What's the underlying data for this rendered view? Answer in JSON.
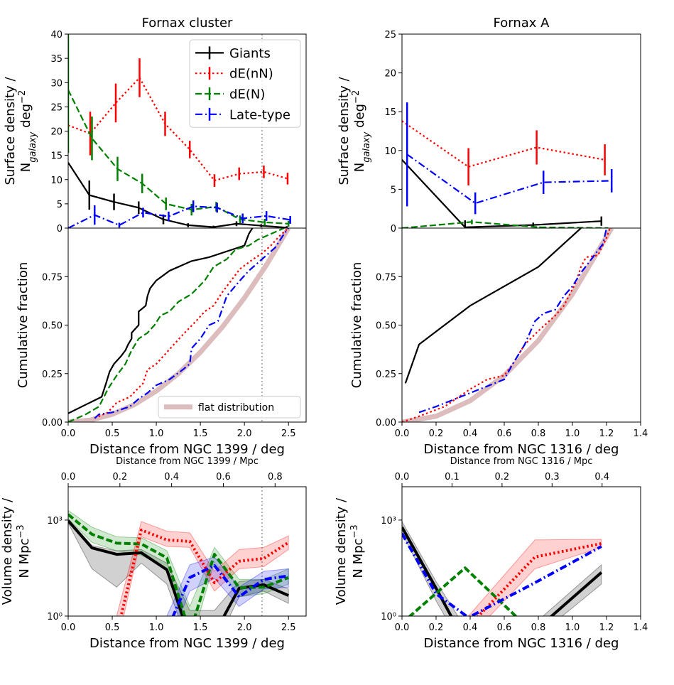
{
  "chart_data": [
    {
      "type": "line",
      "title": "Fornax cluster",
      "ylabel": [
        "Surface density /",
        [
          "N",
          "galaxy",
          " deg",
          "−2"
        ]
      ],
      "xlim": [
        0,
        2.7
      ],
      "ylim": [
        0,
        40
      ],
      "yticks": [
        0,
        5,
        10,
        15,
        20,
        25,
        30,
        35,
        40
      ],
      "vline": 2.2,
      "legend": "upper right",
      "series": [
        {
          "name": "Giants",
          "color": "#000000",
          "style": "solid",
          "x": [
            0,
            0.24,
            0.52,
            0.8,
            1.08,
            1.36,
            1.65,
            1.91,
            2.19,
            2.48
          ],
          "values": [
            13.5,
            6.8,
            5.4,
            4.2,
            1.8,
            0.6,
            0.2,
            0.9,
            0.5,
            0.1
          ],
          "errors": [
            null,
            3,
            1.7,
            1.3,
            1,
            0.4,
            0.3,
            0.5,
            0.3,
            0.3
          ]
        },
        {
          "name": "dE(nN)",
          "color": "#ff0000",
          "style": "dotted",
          "x": [
            0,
            0.25,
            0.54,
            0.81,
            1.1,
            1.38,
            1.66,
            1.94,
            2.22,
            2.49
          ],
          "values": [
            21.2,
            19.5,
            25.8,
            31,
            21.5,
            16.2,
            9.8,
            11.2,
            11.6,
            10.2
          ],
          "errors": [
            null,
            4.5,
            4,
            4,
            2.5,
            1.8,
            1.3,
            1.3,
            1.3,
            1.2
          ]
        },
        {
          "name": "dE(N)",
          "color": "#008000",
          "style": "dashed",
          "x": [
            0,
            0.27,
            0.56,
            0.84,
            1.11,
            1.4,
            1.68,
            1.95,
            2.23,
            2.5
          ],
          "values": [
            28.5,
            18.5,
            12.2,
            9.2,
            5,
            3.8,
            4.4,
            1.8,
            1.2,
            0.9
          ],
          "errors": [
            13,
            4.5,
            2.5,
            2,
            1.3,
            1.2,
            1,
            0.8,
            0.7,
            0.6
          ]
        },
        {
          "name": "Late-type",
          "color": "#0000ff",
          "style": "dashdot",
          "x": [
            0,
            0.3,
            0.58,
            0.85,
            1.14,
            1.42,
            1.69,
            1.98,
            2.25,
            2.52
          ],
          "values": [
            0,
            2.7,
            0.6,
            3.2,
            2.4,
            4.5,
            4.2,
            2,
            2.5,
            1.7
          ],
          "errors": [
            null,
            2,
            0.5,
            1,
            1,
            1.2,
            1,
            1,
            1,
            0.8
          ]
        }
      ]
    },
    {
      "type": "line",
      "ylabel": "Cumulative fraction",
      "xlabel": "Distance from NGC 1399 / deg",
      "xlim": [
        0,
        2.7
      ],
      "xticks": [
        {
          "value": 0,
          "label": "0.0"
        },
        0.5,
        {
          "value": 1,
          "label": "1.0"
        },
        1.5,
        {
          "value": 2,
          "label": "2.0"
        },
        2.5
      ],
      "ylim": [
        0,
        1
      ],
      "yticks": [
        {
          "value": 0,
          "label": "0.00"
        },
        0.25,
        {
          "value": 0.5,
          "label": "0.50"
        },
        0.75
      ],
      "vline": 2.2,
      "legend": "lower right",
      "series": [
        {
          "name": "flat distribution",
          "color": "#dcbcbc",
          "style": "solid",
          "linewidth": 7,
          "x": [
            0,
            0.25,
            0.5,
            0.75,
            1,
            1.25,
            1.5,
            1.75,
            2,
            2.25,
            2.5
          ],
          "values": [
            0,
            0.01,
            0.04,
            0.09,
            0.16,
            0.25,
            0.36,
            0.49,
            0.64,
            0.81,
            1
          ]
        },
        {
          "color": "#000000",
          "style": "solid",
          "x": [
            0,
            0.2,
            0.38,
            0.43,
            0.47,
            0.52,
            0.6,
            0.65,
            0.68,
            0.72,
            0.72,
            0.8,
            0.8,
            0.88,
            0.9,
            0.93,
            1,
            1.15,
            1.4,
            1.6,
            1.8,
            2,
            2.05,
            2.09
          ],
          "values": [
            0.045,
            0.09,
            0.13,
            0.2,
            0.26,
            0.3,
            0.34,
            0.37,
            0.4,
            0.43,
            0.46,
            0.5,
            0.57,
            0.6,
            0.65,
            0.69,
            0.73,
            0.78,
            0.83,
            0.85,
            0.88,
            0.91,
            0.97,
            1
          ]
        },
        {
          "color": "#008000",
          "style": "dashed",
          "x": [
            0,
            0.1,
            0.2,
            0.35,
            0.45,
            0.55,
            0.65,
            0.72,
            0.8,
            0.9,
            0.98,
            1.05,
            1.15,
            1.25,
            1.4,
            1.55,
            1.65,
            1.8,
            1.9,
            2.05,
            2.15,
            2.3,
            2.45
          ],
          "values": [
            0,
            0.02,
            0.04,
            0.08,
            0.17,
            0.24,
            0.3,
            0.37,
            0.43,
            0.46,
            0.5,
            0.55,
            0.57,
            0.62,
            0.66,
            0.73,
            0.8,
            0.84,
            0.89,
            0.91,
            0.94,
            0.97,
            1
          ]
        },
        {
          "color": "#ff0000",
          "style": "dotted",
          "x": [
            0.3,
            0.45,
            0.55,
            0.7,
            0.85,
            0.9,
            1,
            1.1,
            1.2,
            1.3,
            1.45,
            1.55,
            1.65,
            1.75,
            1.85,
            1.95,
            2.1,
            2.2,
            2.3,
            2.4,
            2.5
          ],
          "values": [
            0.02,
            0.05,
            0.1,
            0.13,
            0.2,
            0.27,
            0.3,
            0.35,
            0.4,
            0.45,
            0.52,
            0.57,
            0.6,
            0.67,
            0.73,
            0.79,
            0.84,
            0.87,
            0.91,
            0.96,
            1
          ]
        },
        {
          "color": "#0000ff",
          "style": "dashdot",
          "x": [
            0.3,
            0.35,
            0.5,
            0.7,
            0.8,
            0.9,
            1,
            1.15,
            1.3,
            1.38,
            1.4,
            1.5,
            1.6,
            1.7,
            1.8,
            1.95,
            2.05,
            2.15,
            2.25,
            2.35,
            2.45,
            2.5
          ],
          "values": [
            0.02,
            0.04,
            0.05,
            0.08,
            0.12,
            0.15,
            0.19,
            0.22,
            0.27,
            0.3,
            0.38,
            0.43,
            0.5,
            0.52,
            0.65,
            0.73,
            0.78,
            0.82,
            0.86,
            0.9,
            0.97,
            1
          ]
        }
      ]
    },
    {
      "type": "line",
      "ylabel": [
        "Volume density /",
        [
          "N Mpc",
          "−3"
        ]
      ],
      "xlabel": "Distance from NGC 1399 / deg",
      "x2label": "Distance from NGC 1399 / Mpc",
      "xlim": [
        0,
        2.7
      ],
      "xticks": [
        {
          "value": 0,
          "label": "0.0"
        },
        0.5,
        {
          "value": 1,
          "label": "1.0"
        },
        1.5,
        {
          "value": 2,
          "label": "2.0"
        },
        2.5
      ],
      "x2lim": [
        0,
        0.92
      ],
      "x2ticks": [
        {
          "value": 0,
          "label": "0.0"
        },
        0.2,
        0.4,
        0.6,
        0.8
      ],
      "ylim": [
        1,
        11000
      ],
      "ylog": true,
      "yticks": [
        {
          "value": 1,
          "label": "10⁰"
        },
        {
          "value": 1000,
          "label": "10³"
        }
      ],
      "vline": 2.2,
      "series": [
        {
          "color": "#000000",
          "style": "solid",
          "x": [
            0,
            0.27,
            0.55,
            0.83,
            1.12,
            1.38,
            1.66,
            1.94,
            2.22,
            2.5
          ],
          "values": [
            950,
            135,
            85,
            95,
            28,
            0.22,
            0.28,
            7.4,
            9.5,
            4.4
          ],
          "lower": [
            800,
            30,
            8,
            45,
            10,
            0.1,
            0.1,
            4,
            6,
            2.5
          ],
          "upper": [
            1100,
            160,
            110,
            120,
            45,
            1.5,
            1.5,
            12,
            14,
            7
          ]
        },
        {
          "color": "#008000",
          "style": "dashed",
          "x": [
            0,
            0.27,
            0.55,
            0.83,
            1.12,
            1.38,
            1.66,
            1.94,
            2.22,
            2.5
          ],
          "values": [
            1500,
            360,
            190,
            180,
            66,
            0.3,
            85,
            7.7,
            8,
            16
          ],
          "lower": [
            1100,
            200,
            110,
            80,
            30,
            0.1,
            50,
            4,
            5,
            10
          ],
          "upper": [
            2000,
            600,
            300,
            280,
            110,
            2,
            140,
            14,
            14,
            30
          ]
        },
        {
          "color": "#ff0000",
          "style": "dotted",
          "x": [
            0.55,
            0.83,
            1.12,
            1.38,
            1.66,
            1.94,
            2.22,
            2.5
          ],
          "values": [
            0.26,
            490,
            240,
            215,
            11,
            52,
            63,
            200
          ],
          "lower": [
            0.1,
            300,
            150,
            140,
            6,
            30,
            35,
            120
          ],
          "upper": [
            1,
            900,
            450,
            400,
            25,
            120,
            140,
            320
          ]
        },
        {
          "color": "#0000ff",
          "style": "dashdot",
          "x": [
            1.12,
            1.38,
            1.66,
            1.94,
            2.22,
            2.5
          ],
          "values": [
            0.35,
            16,
            38,
            4,
            14,
            18
          ],
          "lower": [
            0.1,
            6,
            15,
            2,
            7,
            8
          ],
          "upper": [
            1,
            40,
            70,
            8,
            25,
            30
          ]
        }
      ]
    },
    {
      "type": "line",
      "title": "Fornax A",
      "ylabel": [
        "Surface density /",
        [
          "N",
          "galaxy",
          " deg",
          "−2"
        ]
      ],
      "xlim": [
        0,
        1.4
      ],
      "ylim": [
        0,
        25
      ],
      "yticks": [
        0,
        5,
        10,
        15,
        20,
        25
      ],
      "series": [
        {
          "color": "#000000",
          "style": "solid",
          "x": [
            0,
            0.37,
            0.77,
            1.17
          ],
          "values": [
            8.8,
            0.1,
            0.4,
            0.9
          ],
          "errors": [
            null,
            0.9,
            0.3,
            0.6
          ]
        },
        {
          "color": "#ff0000",
          "style": "dotted",
          "x": [
            0,
            0.39,
            0.79,
            1.19
          ],
          "values": [
            13.8,
            7.9,
            10.4,
            8.8
          ],
          "errors": [
            null,
            2.4,
            2.2,
            2
          ]
        },
        {
          "color": "#008000",
          "style": "dashed",
          "x": [
            0,
            0.41,
            0.81,
            1.21
          ],
          "values": [
            0,
            0.8,
            0.1,
            0
          ],
          "errors": [
            null,
            0.3,
            0.1,
            null
          ]
        },
        {
          "color": "#0000ff",
          "style": "dashdot",
          "x": [
            0.03,
            0.43,
            0.83,
            1.23
          ],
          "values": [
            9.5,
            3.2,
            5.9,
            6.1
          ],
          "errors": [
            6.7,
            1.4,
            1.5,
            1.5
          ]
        }
      ]
    },
    {
      "type": "line",
      "ylabel": "Cumulative fraction",
      "xlabel": "Distance from NGC 1316 / deg",
      "xlim": [
        0,
        1.4
      ],
      "xticks": [
        {
          "value": 0,
          "label": "0.0"
        },
        0.2,
        0.4,
        0.6,
        0.8,
        {
          "value": 1,
          "label": "1.0"
        },
        1.2,
        1.4
      ],
      "ylim": [
        0,
        1
      ],
      "yticks": [
        {
          "value": 0,
          "label": "0.00"
        },
        0.25,
        {
          "value": 0.5,
          "label": "0.50"
        },
        0.75
      ],
      "series": [
        {
          "color": "#dcbcbc",
          "style": "solid",
          "linewidth": 7,
          "x": [
            0,
            0.2,
            0.4,
            0.6,
            0.8,
            1,
            1.23
          ],
          "values": [
            0,
            0.03,
            0.11,
            0.24,
            0.42,
            0.66,
            1
          ]
        },
        {
          "color": "#000000",
          "style": "solid",
          "x": [
            0.02,
            0.1,
            0.4,
            0.8,
            1.05
          ],
          "values": [
            0.2,
            0.4,
            0.6,
            0.8,
            1
          ]
        },
        {
          "color": "#ff0000",
          "style": "dotted",
          "x": [
            0,
            0.1,
            0.25,
            0.4,
            0.5,
            0.6,
            0.65,
            0.72,
            0.8,
            0.9,
            0.95,
            1.02,
            1.05,
            1.08,
            1.15,
            1.2,
            1.22
          ],
          "values": [
            0,
            0.03,
            0.08,
            0.17,
            0.22,
            0.24,
            0.3,
            0.4,
            0.47,
            0.55,
            0.6,
            0.72,
            0.8,
            0.85,
            0.86,
            0.95,
            1
          ]
        },
        {
          "color": "#0000ff",
          "style": "dashdot",
          "x": [
            0.1,
            0.2,
            0.4,
            0.6,
            0.65,
            0.72,
            0.78,
            0.83,
            0.9,
            0.95,
            1,
            1.05,
            1.12,
            1.18,
            1.2
          ],
          "values": [
            0.05,
            0.08,
            0.15,
            0.22,
            0.3,
            0.4,
            0.52,
            0.56,
            0.58,
            0.65,
            0.7,
            0.77,
            0.85,
            0.92,
            1
          ]
        }
      ]
    },
    {
      "type": "line",
      "ylabel": [
        "Volume density /",
        [
          "N Mpc",
          "−3"
        ]
      ],
      "xlabel": "Distance from NGC 1316 / deg",
      "x2label": "Distance from NGC 1316 / Mpc",
      "xlim": [
        0,
        1.4
      ],
      "xticks": [
        {
          "value": 0,
          "label": "0.0"
        },
        0.2,
        0.4,
        0.6,
        0.8,
        {
          "value": 1,
          "label": "1.0"
        },
        1.2,
        1.4
      ],
      "x2lim": [
        0,
        0.477
      ],
      "x2ticks": [
        {
          "value": 0,
          "label": "0.0"
        },
        0.1,
        0.2,
        0.3,
        0.4
      ],
      "ylim": [
        1,
        11000
      ],
      "ylog": true,
      "yticks": [
        {
          "value": 1,
          "label": "10⁰"
        },
        {
          "value": 1000,
          "label": "10³"
        }
      ],
      "series": [
        {
          "color": "#000000",
          "style": "solid",
          "x": [
            0,
            0.2,
            0.39,
            0.78,
            1.17
          ],
          "values": [
            600,
            7.4,
            0.1,
            0.35,
            23
          ],
          "lower": [
            400,
            3,
            0.05,
            0.2,
            10
          ],
          "upper": [
            900,
            12,
            0.3,
            0.6,
            40
          ]
        },
        {
          "color": "#008000",
          "style": "dashed",
          "x": [
            0,
            0.37,
            0.77
          ],
          "values": [
            0.6,
            32,
            0.3
          ]
        },
        {
          "color": "#ff0000",
          "style": "dotted",
          "x": [
            0.39,
            0.78,
            1.17
          ],
          "values": [
            0.47,
            70,
            185
          ],
          "lower": [
            0.2,
            30,
            140
          ],
          "upper": [
            1,
            240,
            250
          ]
        },
        {
          "color": "#0000ff",
          "style": "dashdot",
          "x": [
            0,
            0.2,
            0.39,
            0.78,
            1.17
          ],
          "values": [
            380,
            5,
            0.9,
            11,
            150
          ]
        }
      ]
    }
  ]
}
